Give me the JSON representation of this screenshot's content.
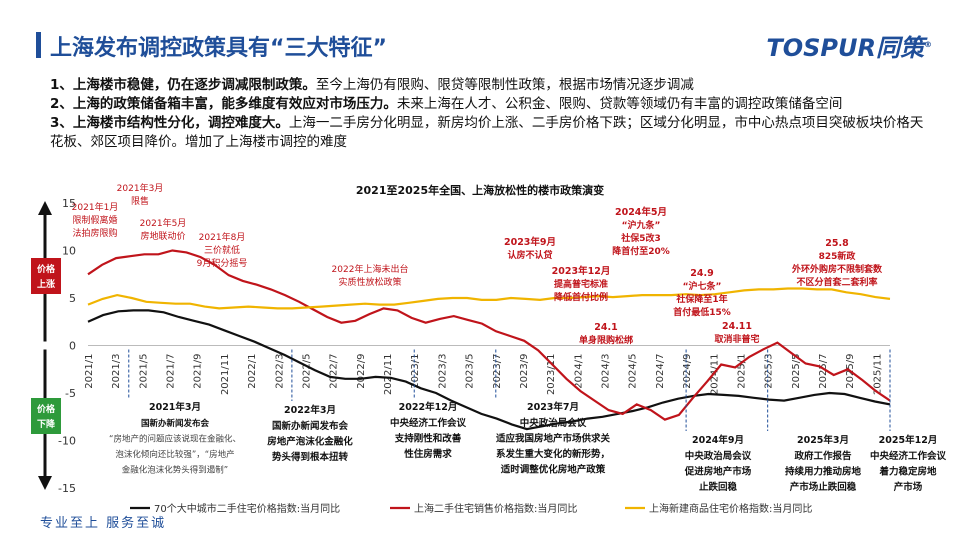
{
  "header": {
    "title": "上海发布调控政策具有“三大特征”",
    "logo_text": "TOSPUR同策",
    "logo_mark": "®"
  },
  "points": [
    {
      "bold": "1、上海楼市稳健，仍在逐步调减限制政策。",
      "text": "至今上海仍有限购、限贷等限制性政策，根据市场情况逐步调减"
    },
    {
      "bold": "2、上海的政策储备箱丰富，能多维度有效应对市场压力。",
      "text": "未来上海在人才、公积金、限购、贷款等领域仍有丰富的调控政策储备空间"
    },
    {
      "bold": "3、上海楼市结构性分化，调控难度大。",
      "text": "上海一二手房分化明显，新房均价上涨、二手房价格下跌；区域分化明显，市中心热点项目突破板块价格天花板、郊区项目降价。增加了上海楼市调控的难度"
    }
  ],
  "footer": {
    "slogan": "专业至上  服务至诚"
  },
  "chart_data": {
    "type": "line",
    "title": "2021至2025年全国、上海放松性的楼市政策演变",
    "ylim": [
      -15,
      15
    ],
    "yticks": [
      15,
      10,
      5,
      0,
      -5,
      -10,
      -15
    ],
    "x_tick_labels": [
      "2021/1",
      "2021/3",
      "2021/5",
      "2021/7",
      "2021/9",
      "2021/11",
      "2022/1",
      "2022/3",
      "2022/5",
      "2022/7",
      "2022/9",
      "2022/11",
      "2023/1",
      "2023/3",
      "2023/5",
      "2023/7",
      "2023/9",
      "2023/11",
      "2024/1",
      "2024/3",
      "2024/5",
      "2024/7",
      "2024/9",
      "2024/11",
      "2025/1",
      "2025/3",
      "2025/5",
      "2025/7",
      "2025/9",
      "2025/11"
    ],
    "up_label": "价格上涨",
    "down_label": "价格下降",
    "series": [
      {
        "name": "70个大中城市二手住宅价格指数:当月同比",
        "color": "#111111",
        "values": [
          2.5,
          3.2,
          3.6,
          3.7,
          3.7,
          3.5,
          3.0,
          2.6,
          2.2,
          1.6,
          1.0,
          0.4,
          -0.3,
          -1.0,
          -1.8,
          -2.6,
          -3.3,
          -3.5,
          -3.5,
          -3.3,
          -3.4,
          -3.8,
          -4.5,
          -5.0,
          -5.8,
          -6.5,
          -7.2,
          -7.7,
          -8.3,
          -8.8,
          -8.5,
          -8.2,
          -8.0,
          -7.7,
          -7.5,
          -7.2,
          -6.9,
          -6.5,
          -6.0,
          -5.6,
          -5.3,
          -5.1,
          -5.2,
          -5.3,
          -5.5,
          -5.7,
          -5.8,
          -5.5,
          -5.2,
          -5.0,
          -5.1,
          -5.5,
          -5.9,
          -6.2
        ]
      },
      {
        "name": "上海二手住宅销售价格指数:当月同比",
        "color": "#c0141b",
        "values": [
          7.5,
          8.5,
          9.2,
          9.4,
          9.6,
          9.6,
          10.0,
          9.8,
          9.3,
          8.5,
          7.4,
          6.8,
          6.4,
          5.9,
          5.3,
          4.6,
          3.8,
          3.0,
          2.4,
          2.6,
          3.3,
          3.9,
          3.7,
          2.9,
          2.4,
          2.8,
          3.1,
          2.7,
          2.3,
          1.5,
          1.0,
          0.5,
          -0.5,
          -2.0,
          -3.5,
          -4.8,
          -5.8,
          -6.8,
          -7.2,
          -6.2,
          -6.8,
          -7.8,
          -7.3,
          -5.5,
          -3.8,
          -2.0,
          -2.3,
          -1.2,
          -0.4,
          0.3,
          -0.8,
          -1.9,
          -2.2,
          -3.1,
          -2.5,
          -3.6,
          -4.8,
          -5.8
        ]
      },
      {
        "name": "上海新建商品住宅价格指数:当月同比",
        "color": "#f0b400",
        "values": [
          4.3,
          4.9,
          5.3,
          5.0,
          4.6,
          4.5,
          4.4,
          4.4,
          4.1,
          3.9,
          4.0,
          4.1,
          4.0,
          3.9,
          3.9,
          4.0,
          4.1,
          4.2,
          4.3,
          4.4,
          4.3,
          4.3,
          4.5,
          4.7,
          4.9,
          5.0,
          5.0,
          4.8,
          4.8,
          5.0,
          4.9,
          4.8,
          5.0,
          5.0,
          5.1,
          5.2,
          5.1,
          5.2,
          5.3,
          5.3,
          5.3,
          5.4,
          5.3,
          5.4,
          5.6,
          5.8,
          5.9,
          5.9,
          6.0,
          6.0,
          5.9,
          5.9,
          5.6,
          5.4,
          5.1,
          4.9
        ]
      }
    ],
    "annotations_red": [
      {
        "lines": [
          "2021年1月",
          "限制假离婚",
          "法拍房限购"
        ],
        "date": 0.5
      },
      {
        "lines": [
          "2021年3月",
          "限售"
        ],
        "date": 2.5
      },
      {
        "lines": [
          "2021年5月",
          "房地联动价"
        ],
        "date": 4.5
      },
      {
        "lines": [
          "2021年8月",
          "三价就低",
          "9月积分摇号"
        ],
        "date": 7.5
      },
      {
        "lines": [
          "2022年上海未出台",
          "实质性放松政策"
        ],
        "date": 19
      },
      {
        "lines": [
          "2023年9月",
          "认房不认贷"
        ],
        "date": 32
      },
      {
        "lines": [
          "2023年12月",
          "提高普宅标准",
          "降低首付比例"
        ],
        "date": 35
      },
      {
        "lines": [
          "24.1",
          "单身限购松绑"
        ],
        "date": 36
      },
      {
        "lines": [
          "2024年5月",
          "“沪九条”",
          "社保5改3",
          "降首付至20%"
        ],
        "date": 40
      },
      {
        "lines": [
          "24.9",
          "“沪七条”",
          "社保降至1年",
          "首付最低15%"
        ],
        "date": 44
      },
      {
        "lines": [
          "24.11",
          "取消非普宅"
        ],
        "date": 46
      },
      {
        "lines": [
          "25.8",
          "825新政",
          "外环外购房不限制套数",
          "不区分首套二套利率"
        ],
        "date": 55
      }
    ],
    "annotations_black": [
      {
        "title": "2021年3月",
        "lines": [
          "国新办新闻发布会",
          "“房地产的问题应该说现在金融化、",
          "泡沫化倾向还比较强”，“房地产",
          "金融化泡沫化势头得到遏制”"
        ],
        "date": 3
      },
      {
        "title": "2022年3月",
        "lines": [
          "国新办新闻发布会",
          "房地产泡沫化金融化",
          "势头得到根本扭转"
        ],
        "date": 15
      },
      {
        "title": "2022年12月",
        "lines": [
          "中央经济工作会议",
          "支持刚性和改善",
          "性住房需求"
        ],
        "date": 24
      },
      {
        "title": "2023年7月",
        "lines": [
          "中央政治局会议",
          "适应我国房地产市场供求关",
          "系发生重大变化的新形势，",
          "适时调整优化房地产政策"
        ],
        "date": 30
      },
      {
        "title": "2024年9月",
        "lines": [
          "中央政治局会议",
          "促进房地产市场",
          "止跌回稳"
        ],
        "date": 44
      },
      {
        "title": "2025年3月",
        "lines": [
          "政府工作报告",
          "持续用力推动房地",
          "产市场止跌回稳"
        ],
        "date": 50
      },
      {
        "title": "2025年12月",
        "lines": [
          "中央经济工作会议",
          "着力稳定房地",
          "产市场"
        ],
        "date": 59
      }
    ]
  }
}
